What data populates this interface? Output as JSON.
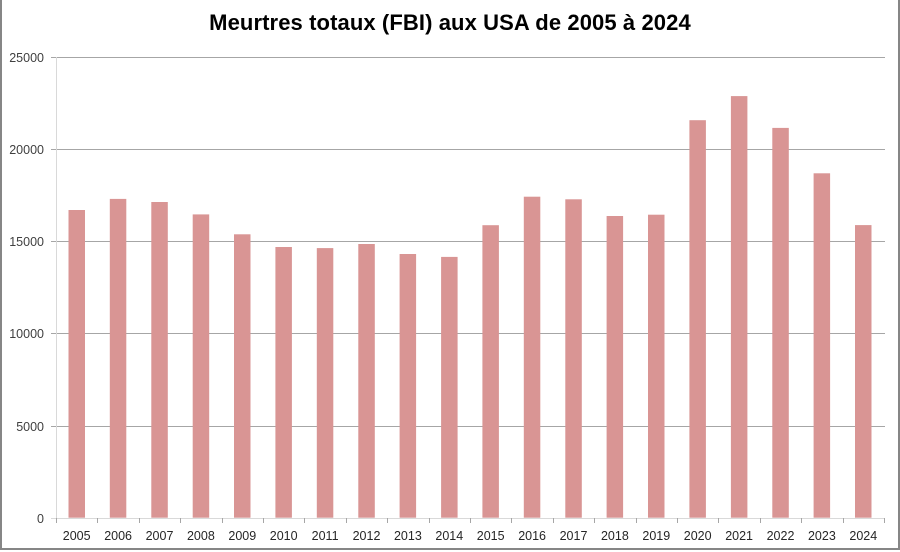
{
  "title": "Meurtres totaux (FBI) aux USA de 2005 à 2024",
  "colors": {
    "bar": "#D99594",
    "gridline": "#A6A6A6",
    "axis": "#D9D9D9",
    "frame": "#868686"
  },
  "chart_data": {
    "type": "bar",
    "title": "Meurtres totaux (FBI) aux USA de 2005 à 2024",
    "xlabel": "",
    "ylabel": "",
    "ylim": [
      0,
      25000
    ],
    "yticks": [
      0,
      5000,
      10000,
      15000,
      20000,
      25000
    ],
    "grid": true,
    "legend": null,
    "categories": [
      "2005",
      "2006",
      "2007",
      "2008",
      "2009",
      "2010",
      "2011",
      "2012",
      "2013",
      "2014",
      "2015",
      "2016",
      "2017",
      "2018",
      "2019",
      "2020",
      "2021",
      "2022",
      "2023",
      "2024"
    ],
    "values": [
      16700,
      17300,
      17130,
      16460,
      15380,
      14690,
      14630,
      14850,
      14310,
      14150,
      15870,
      17420,
      17280,
      16370,
      16440,
      21570,
      22880,
      21150,
      18690,
      15880
    ]
  }
}
